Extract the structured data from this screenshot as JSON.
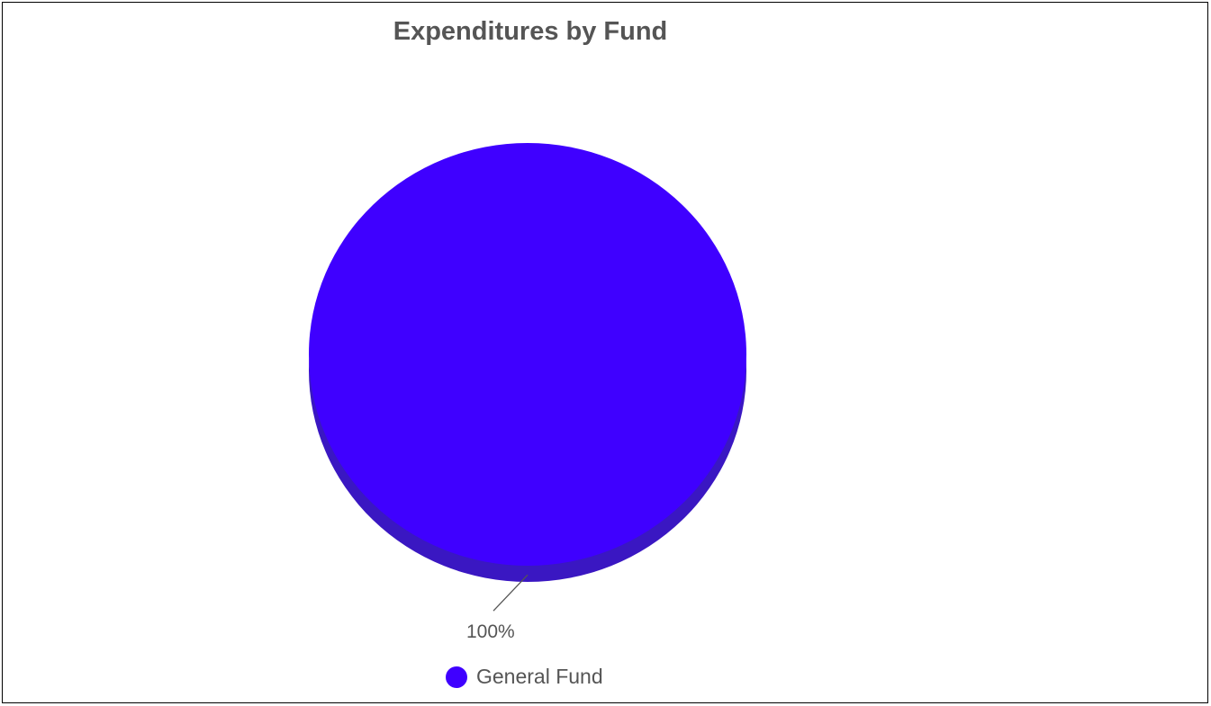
{
  "chart_data": {
    "type": "pie",
    "title": "Expenditures by Fund",
    "slices": [
      {
        "label": "General Fund",
        "value": 100,
        "data_label": "100%",
        "color": "#3f00ff"
      }
    ],
    "legend": {
      "placement": "bottom"
    },
    "style": {
      "three_d": true,
      "shadow_color": "#3a17c2"
    }
  }
}
